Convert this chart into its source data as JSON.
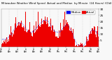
{
  "title": "Milwaukee Weather Wind Speed  Actual and Median  by Minute  (24 Hours) (Old)",
  "n_minutes": 1440,
  "y_min": 0,
  "y_max": 30,
  "background_color": "#f8f8f8",
  "bar_color": "#ee0000",
  "median_color": "#0000ee",
  "grid_color": "#bbbbbb",
  "ytick_fontsize": 3.0,
  "xtick_fontsize": 2.2,
  "title_fontsize": 2.8,
  "legend_fontsize": 2.8,
  "seed": 99
}
